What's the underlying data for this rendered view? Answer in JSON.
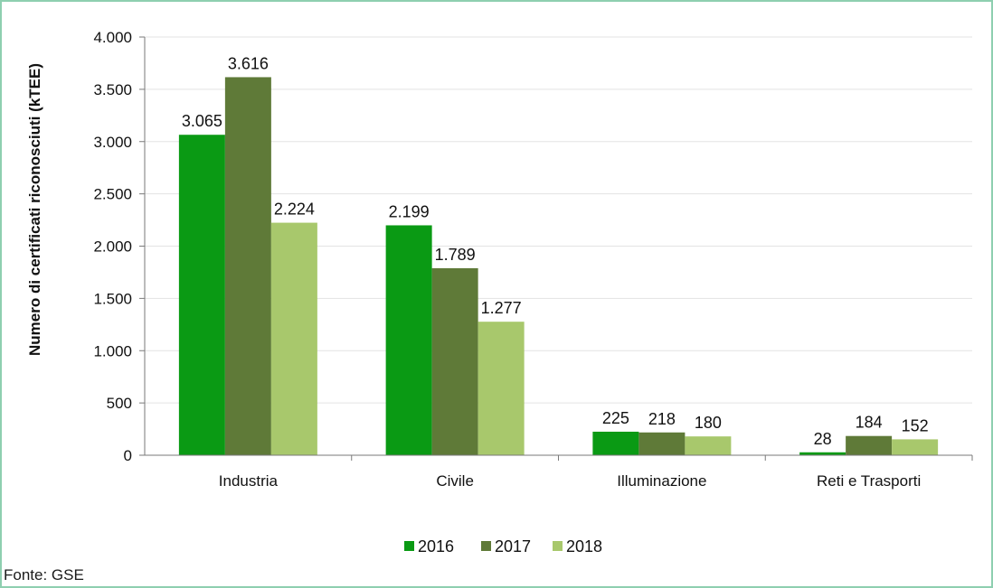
{
  "chart_data": {
    "type": "bar",
    "title": "",
    "xlabel": "",
    "ylabel": "Numero di certificati riconosciuti (kTEE)",
    "ylim": [
      0,
      4000
    ],
    "yticks": [
      0,
      500,
      1000,
      1500,
      2000,
      2500,
      3000,
      3500,
      4000
    ],
    "ytick_labels": [
      "0",
      "500",
      "1.000",
      "1.500",
      "2.000",
      "2.500",
      "3.000",
      "3.500",
      "4.000"
    ],
    "grid": true,
    "legend_position": "bottom",
    "categories": [
      "Industria",
      "Civile",
      "Illuminazione",
      "Reti e Trasporti"
    ],
    "series": [
      {
        "name": "2016",
        "color": "#0a9a14",
        "values": [
          3065,
          2199,
          225,
          28
        ],
        "labels": [
          "3.065",
          "2.199",
          "225",
          "28"
        ]
      },
      {
        "name": "2017",
        "color": "#5f7a38",
        "values": [
          3616,
          1789,
          218,
          184
        ],
        "labels": [
          "3.616",
          "1.789",
          "218",
          "184"
        ]
      },
      {
        "name": "2018",
        "color": "#a8c86c",
        "values": [
          2224,
          1277,
          180,
          152
        ],
        "labels": [
          "2.224",
          "1.277",
          "180",
          "152"
        ]
      }
    ]
  },
  "source": "Fonte: GSE",
  "colors": {
    "frame": "#8ecfb0",
    "grid": "#e3e3e3",
    "axis": "#7a7a7a"
  }
}
